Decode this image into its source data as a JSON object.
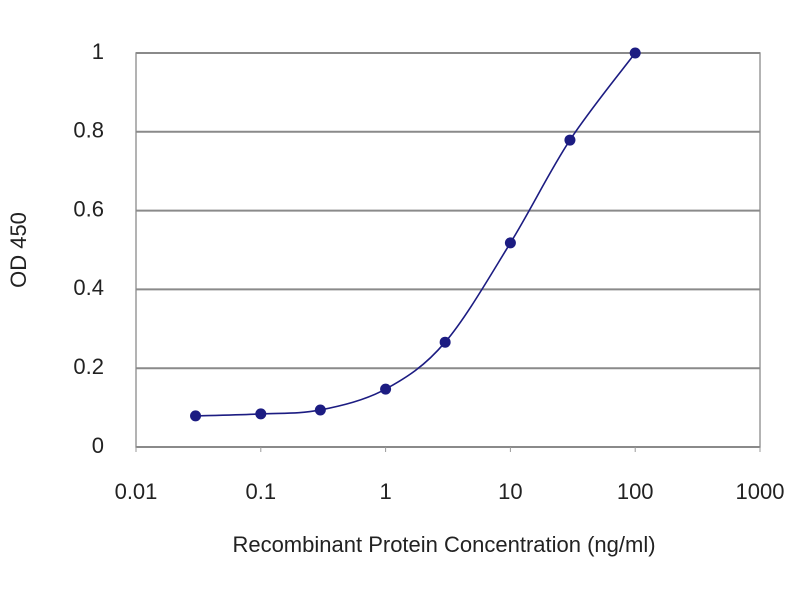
{
  "chart_data": {
    "type": "scatter",
    "x_label": "Recombinant Protein Concentration (ng/ml)",
    "y_label": "OD 450",
    "x": [
      0.03,
      0.1,
      0.3,
      1,
      3,
      10,
      30,
      100
    ],
    "values": [
      0.079,
      0.084,
      0.094,
      0.147,
      0.266,
      0.518,
      0.779,
      1.0
    ],
    "color": "#1c1c82",
    "x_log": true,
    "xlim": [
      0.01,
      1000
    ],
    "xticks": [
      0.01,
      0.1,
      1,
      10,
      100,
      1000
    ],
    "ylim": [
      0,
      1
    ],
    "yticks": [
      0,
      0.2,
      0.4,
      0.6,
      0.8,
      1
    ],
    "grid": true
  }
}
